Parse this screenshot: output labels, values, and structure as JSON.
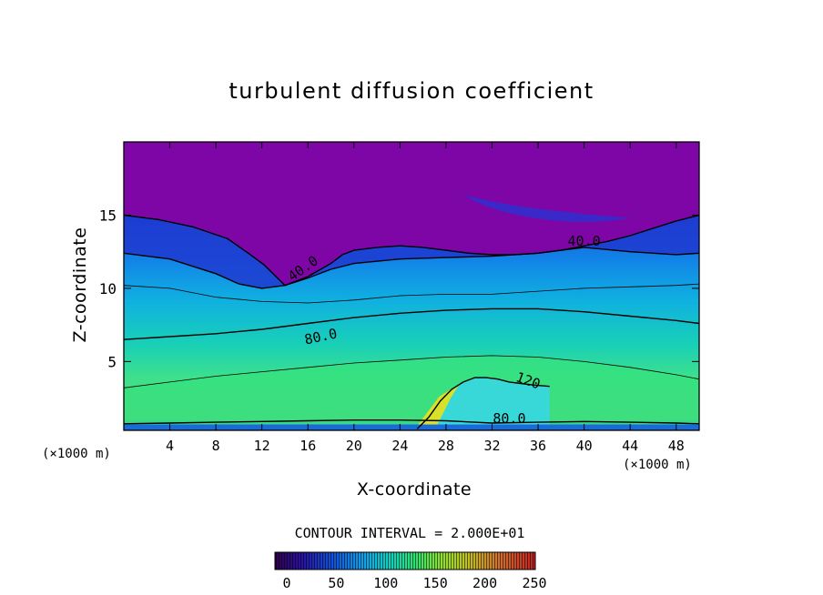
{
  "chart_data": {
    "type": "heatmap",
    "title": "turbulent diffusion coefficient",
    "xlabel": "X-coordinate",
    "ylabel": "Z-coordinate",
    "x_unit_left": "(×1000 m)",
    "x_unit_right": "(×1000 m)",
    "xlim": [
      0,
      50
    ],
    "ylim": [
      0.3,
      20
    ],
    "x_ticks": [
      4,
      8,
      12,
      16,
      20,
      24,
      28,
      32,
      36,
      40,
      44,
      48
    ],
    "y_ticks": [
      5,
      10,
      15
    ],
    "contour_interval_text": "CONTOUR INTERVAL = 2.000E+01",
    "colorbar": {
      "min": 0,
      "max": 250,
      "ticks": [
        0,
        50,
        100,
        150,
        200,
        250
      ],
      "colors": [
        "#4a0090",
        "#1020c0",
        "#1070e8",
        "#10b8e0",
        "#10d8a0",
        "#40e060",
        "#a0e020",
        "#e0d020",
        "#f07010",
        "#d01818"
      ]
    },
    "contour_labels": [
      {
        "text": "40.0",
        "x": 15.8,
        "z": 11.1,
        "angle": -35
      },
      {
        "text": "40.0",
        "x": 40.0,
        "z": 12.9,
        "angle": 0
      },
      {
        "text": "80.0",
        "x": 17.2,
        "z": 6.4,
        "angle": -12
      },
      {
        "text": "120",
        "x": 35.0,
        "z": 3.4,
        "angle": 20
      },
      {
        "text": "80.0",
        "x": 33.5,
        "z": 0.8,
        "angle": 0
      }
    ],
    "contours": [
      {
        "level": 40,
        "x": [
          0,
          3,
          6,
          9,
          11,
          12.2,
          14,
          16,
          18,
          19,
          20,
          22,
          24,
          26,
          28,
          30,
          32,
          34,
          36,
          38,
          40,
          42,
          44,
          46,
          48,
          50
        ],
        "z": [
          15,
          14.7,
          14.2,
          13.4,
          12.3,
          11.6,
          10.2,
          10.8,
          11.7,
          12.3,
          12.6,
          12.8,
          12.9,
          12.8,
          12.6,
          12.4,
          12.3,
          12.3,
          12.4,
          12.6,
          12.9,
          13.2,
          13.6,
          14.1,
          14.6,
          15
        ]
      },
      {
        "level": 40,
        "x": [
          0,
          4,
          8,
          10,
          12,
          14,
          16,
          18,
          20,
          24,
          28,
          32,
          36,
          38,
          40,
          44,
          48,
          50
        ],
        "z": [
          12.4,
          12.0,
          11.0,
          10.3,
          10.0,
          10.2,
          10.7,
          11.3,
          11.7,
          12.0,
          12.1,
          12.2,
          12.4,
          12.6,
          12.8,
          12.5,
          12.3,
          12.4
        ]
      },
      {
        "level": 60,
        "x": [
          0,
          4,
          8,
          12,
          16,
          20,
          24,
          28,
          32,
          36,
          40,
          44,
          48,
          50
        ],
        "z": [
          10.2,
          10.0,
          9.4,
          9.1,
          9.0,
          9.2,
          9.5,
          9.6,
          9.6,
          9.8,
          10.0,
          10.1,
          10.2,
          10.3
        ]
      },
      {
        "level": 80,
        "x": [
          0,
          4,
          8,
          12,
          16,
          20,
          24,
          28,
          32,
          36,
          40,
          44,
          48,
          50
        ],
        "z": [
          6.5,
          6.7,
          6.9,
          7.2,
          7.6,
          8.0,
          8.3,
          8.5,
          8.6,
          8.6,
          8.4,
          8.1,
          7.8,
          7.6
        ]
      },
      {
        "level": 100,
        "x": [
          0,
          4,
          8,
          12,
          16,
          20,
          24,
          28,
          32,
          36,
          40,
          44,
          48,
          50
        ],
        "z": [
          3.2,
          3.6,
          4.0,
          4.3,
          4.6,
          4.9,
          5.1,
          5.3,
          5.4,
          5.3,
          5.0,
          4.6,
          4.1,
          3.8
        ]
      },
      {
        "level": 120,
        "x": [
          25.5,
          26.5,
          27.5,
          28.5,
          29.5,
          30.5,
          31.5,
          32.5,
          33.5,
          34.5,
          35.5,
          37.0
        ],
        "z": [
          0.4,
          1.2,
          2.3,
          3.1,
          3.6,
          3.9,
          3.9,
          3.8,
          3.6,
          3.5,
          3.4,
          3.3
        ]
      },
      {
        "level": 80,
        "x": [
          0,
          4,
          8,
          12,
          16,
          20,
          24,
          28,
          32,
          36,
          40,
          44,
          48,
          50
        ],
        "z": [
          0.75,
          0.8,
          0.85,
          0.9,
          0.95,
          1.0,
          1.0,
          0.95,
          0.8,
          0.85,
          0.9,
          0.85,
          0.8,
          0.75
        ]
      }
    ]
  }
}
